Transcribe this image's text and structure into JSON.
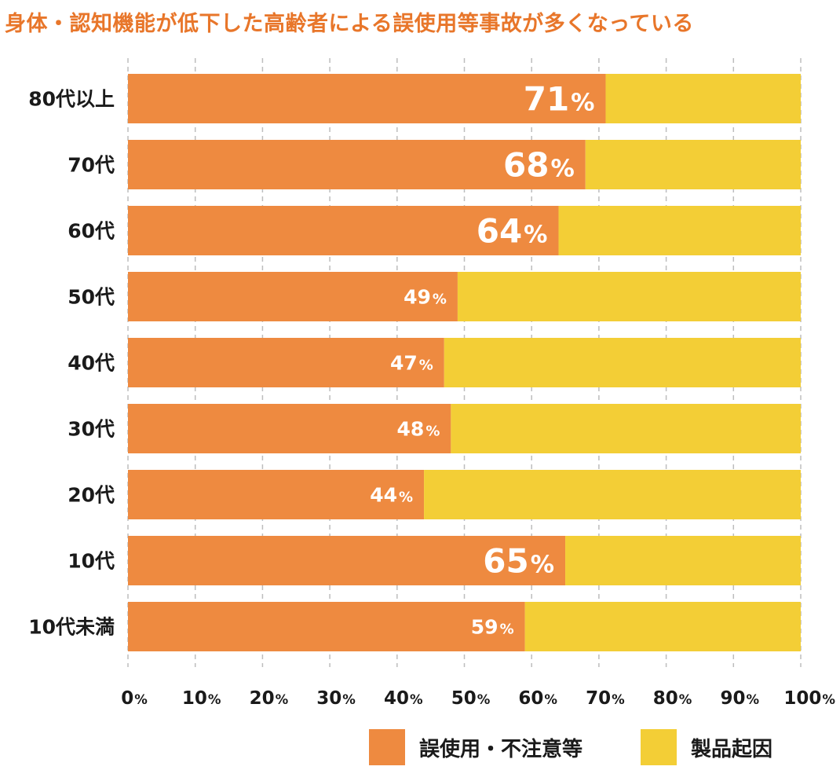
{
  "chart_data": {
    "type": "bar",
    "orientation": "horizontal",
    "stacked": true,
    "title": "身体・認知機能が低下した高齢者による誤使用等事故が多くなっている",
    "categories": [
      "80代以上",
      "70代",
      "60代",
      "50代",
      "40代",
      "30代",
      "20代",
      "10代",
      "10代未満"
    ],
    "series": [
      {
        "name": "誤使用・不注意等",
        "color": "#ee8a40",
        "values": [
          71,
          68,
          64,
          49,
          47,
          48,
          44,
          65,
          59
        ]
      },
      {
        "name": "製品起因",
        "color": "#f3ce36",
        "values": [
          29,
          32,
          36,
          51,
          53,
          52,
          56,
          35,
          41
        ]
      }
    ],
    "data_labels": [
      "71",
      "68",
      "64",
      "49",
      "47",
      "48",
      "44",
      "65",
      "59"
    ],
    "percent_sign": "%",
    "xlim": [
      0,
      100
    ],
    "xticks": [
      0,
      10,
      20,
      30,
      40,
      50,
      60,
      70,
      80,
      90,
      100
    ],
    "grid": "vertical-dashed",
    "legend_position": "bottom-right"
  }
}
